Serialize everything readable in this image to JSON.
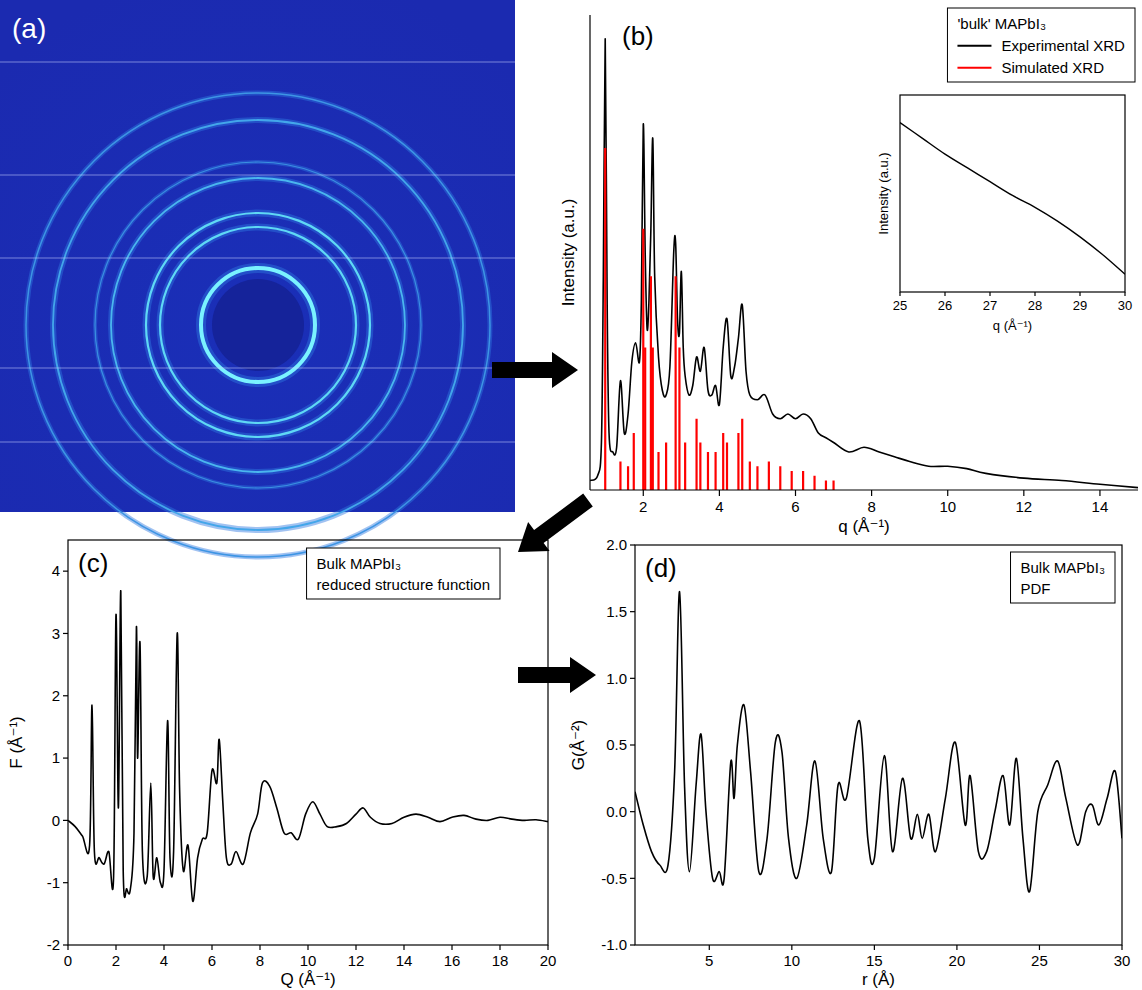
{
  "chart_data": [
    {
      "type": "image",
      "label": "(a)"
    },
    {
      "type": "line",
      "label": "(b)",
      "title": "'bulk' MAPbI₃",
      "x_label": "q (Å⁻¹)",
      "y_label": "Intensity (a.u.)",
      "xlim": [
        0.6,
        15
      ],
      "xticks": [
        2,
        4,
        6,
        8,
        10,
        12,
        14
      ],
      "ylim": [
        0,
        1
      ],
      "tick_labels": "x",
      "legend": "upper right",
      "series": [
        {
          "name": "Experimental XRD",
          "type": "line",
          "color": "#000000",
          "x": [
            0.6,
            0.8,
            0.9,
            0.95,
            1.0,
            1.05,
            1.1,
            1.2,
            1.3,
            1.4,
            1.5,
            1.6,
            1.7,
            1.8,
            1.9,
            1.95,
            2.0,
            2.05,
            2.1,
            2.15,
            2.2,
            2.25,
            2.3,
            2.4,
            2.5,
            2.6,
            2.7,
            2.8,
            2.85,
            2.9,
            2.95,
            3.0,
            3.05,
            3.1,
            3.2,
            3.3,
            3.4,
            3.5,
            3.6,
            3.7,
            3.8,
            3.9,
            4.0,
            4.1,
            4.2,
            4.3,
            4.4,
            4.5,
            4.6,
            4.7,
            4.8,
            5.0,
            5.2,
            5.4,
            5.6,
            5.8,
            6.0,
            6.2,
            6.4,
            6.6,
            6.8,
            7.0,
            7.4,
            7.8,
            8.2,
            8.6,
            9.0,
            9.5,
            10,
            10.5,
            11,
            12,
            13,
            14,
            15
          ],
          "values": [
            0.02,
            0.03,
            0.1,
            0.45,
            0.95,
            0.4,
            0.12,
            0.08,
            0.09,
            0.23,
            0.12,
            0.16,
            0.27,
            0.31,
            0.27,
            0.4,
            0.77,
            0.5,
            0.34,
            0.4,
            0.55,
            0.74,
            0.45,
            0.28,
            0.21,
            0.2,
            0.26,
            0.5,
            0.52,
            0.36,
            0.33,
            0.46,
            0.3,
            0.24,
            0.2,
            0.22,
            0.28,
            0.25,
            0.3,
            0.21,
            0.2,
            0.22,
            0.18,
            0.3,
            0.36,
            0.24,
            0.26,
            0.32,
            0.39,
            0.25,
            0.2,
            0.19,
            0.2,
            0.16,
            0.15,
            0.16,
            0.15,
            0.16,
            0.15,
            0.12,
            0.11,
            0.1,
            0.08,
            0.09,
            0.08,
            0.07,
            0.06,
            0.05,
            0.05,
            0.045,
            0.035,
            0.025,
            0.02,
            0.012,
            0.005
          ]
        },
        {
          "name": "Simulated XRD",
          "type": "stem",
          "color": "#ff0000",
          "x": [
            1.0,
            1.4,
            1.6,
            1.75,
            2.0,
            2.05,
            2.2,
            2.25,
            2.4,
            2.6,
            2.85,
            2.95,
            3.1,
            3.4,
            3.5,
            3.7,
            3.9,
            4.1,
            4.2,
            4.5,
            4.6,
            4.8,
            5.0,
            5.3,
            5.6,
            5.9,
            6.2,
            6.5,
            6.8,
            7.0
          ],
          "values": [
            0.72,
            0.06,
            0.05,
            0.12,
            0.55,
            0.3,
            0.45,
            0.3,
            0.08,
            0.1,
            0.45,
            0.3,
            0.1,
            0.15,
            0.1,
            0.08,
            0.08,
            0.12,
            0.1,
            0.12,
            0.15,
            0.06,
            0.05,
            0.06,
            0.05,
            0.04,
            0.04,
            0.03,
            0.02,
            0.02
          ]
        }
      ]
    },
    {
      "type": "line",
      "x_label": "q (Å⁻¹)",
      "y_label": "Intensity (a.u.)",
      "xlim": [
        25,
        30
      ],
      "xticks": [
        25,
        26,
        27,
        28,
        29,
        30
      ],
      "ylim": [
        0,
        1
      ],
      "tick_labels": "x",
      "color": "#000000",
      "x": [
        25,
        25.5,
        26,
        26.5,
        27,
        27.5,
        28,
        28.5,
        29,
        29.5,
        30
      ],
      "values": [
        0.86,
        0.78,
        0.7,
        0.63,
        0.56,
        0.49,
        0.43,
        0.36,
        0.28,
        0.19,
        0.09
      ]
    },
    {
      "type": "line",
      "label": "(c)",
      "title": "Bulk MAPbI₃",
      "subtitle": "reduced structure function",
      "x_label": "Q (Å⁻¹)",
      "y_label": "F (Å⁻¹)",
      "xlim": [
        0,
        20
      ],
      "xticks": [
        0,
        2,
        4,
        6,
        8,
        10,
        12,
        14,
        16,
        18,
        20
      ],
      "ylim": [
        -2,
        4.5
      ],
      "yticks": [
        -2,
        -1,
        0,
        1,
        2,
        3,
        4
      ],
      "color": "#000000",
      "x": [
        0,
        0.3,
        0.6,
        0.9,
        1.0,
        1.1,
        1.3,
        1.5,
        1.7,
        1.9,
        2.0,
        2.1,
        2.2,
        2.3,
        2.45,
        2.6,
        2.75,
        2.85,
        2.9,
        3.0,
        3.1,
        3.3,
        3.45,
        3.55,
        3.7,
        3.85,
        4.0,
        4.15,
        4.25,
        4.4,
        4.55,
        4.65,
        4.8,
        5.0,
        5.2,
        5.4,
        5.6,
        5.8,
        6.0,
        6.2,
        6.3,
        6.45,
        6.6,
        6.8,
        7.0,
        7.3,
        7.6,
        7.9,
        8.1,
        8.4,
        8.7,
        9.0,
        9.3,
        9.6,
        9.9,
        10.2,
        10.5,
        10.8,
        11.2,
        11.6,
        12.0,
        12.3,
        12.6,
        13.0,
        13.5,
        14.0,
        14.5,
        15.0,
        15.5,
        16.0,
        16.5,
        17.0,
        17.5,
        18.0,
        18.5,
        19.0,
        19.5,
        20.0
      ],
      "values": [
        0,
        -0.1,
        -0.25,
        -0.4,
        1.85,
        -0.5,
        -0.6,
        -0.7,
        -0.5,
        -0.9,
        3.3,
        0.2,
        3.68,
        -0.8,
        -1.1,
        -1.1,
        -0.2,
        3.1,
        1.0,
        2.85,
        -0.5,
        -0.9,
        0.6,
        -0.9,
        -0.6,
        -1.0,
        -0.8,
        1.6,
        -0.6,
        -0.5,
        3.0,
        0.5,
        -0.8,
        -0.4,
        -1.3,
        -0.6,
        -0.3,
        -0.2,
        0.8,
        0.6,
        1.3,
        0.3,
        -0.6,
        -0.7,
        -0.5,
        -0.7,
        -0.2,
        0.1,
        0.6,
        0.55,
        0.2,
        -0.2,
        -0.2,
        -0.3,
        0.1,
        0.3,
        0.1,
        -0.1,
        -0.1,
        -0.05,
        0.1,
        0.2,
        0.05,
        -0.05,
        -0.05,
        0.05,
        0.1,
        0.05,
        -0.02,
        0.05,
        0.08,
        0.02,
        0,
        0.05,
        0.02,
        0,
        0.01,
        -0.02
      ]
    },
    {
      "type": "line",
      "label": "(d)",
      "title": "Bulk MAPbI₃",
      "subtitle": "PDF",
      "x_label": "r (Å)",
      "y_label": "G(Å⁻²)",
      "xlim": [
        0.5,
        30
      ],
      "xticks": [
        5,
        10,
        15,
        20,
        25,
        30
      ],
      "ylim": [
        -1,
        2
      ],
      "yticks": [
        {
          "value": -1,
          "label": "-1.0"
        },
        -0.5,
        {
          "value": 0,
          "label": "0.0"
        },
        0.5,
        {
          "value": 1,
          "label": "1.0"
        },
        1.5,
        {
          "value": 2,
          "label": "2.0"
        }
      ],
      "color": "#000000",
      "x": [
        0.5,
        1.0,
        1.5,
        2.0,
        2.5,
        2.9,
        3.2,
        3.5,
        3.8,
        4.2,
        4.5,
        4.8,
        5.2,
        5.6,
        5.9,
        6.3,
        6.5,
        6.7,
        7.1,
        7.5,
        8.0,
        8.5,
        9.0,
        9.4,
        9.8,
        10.3,
        10.9,
        11.4,
        11.9,
        12.4,
        12.8,
        13.3,
        14.1,
        14.6,
        15.0,
        15.6,
        16.1,
        16.7,
        17.2,
        17.6,
        17.9,
        18.3,
        18.7,
        19.3,
        19.9,
        20.5,
        20.8,
        21.3,
        21.8,
        22.3,
        22.8,
        23.2,
        23.6,
        24.0,
        24.4,
        24.9,
        25.5,
        26.1,
        26.6,
        27.3,
        27.8,
        28.2,
        28.6,
        29.1,
        29.6,
        30.0
      ],
      "values": [
        0.15,
        -0.1,
        -0.3,
        -0.4,
        -0.4,
        0.3,
        1.65,
        0.2,
        -0.45,
        0.2,
        0.58,
        0.0,
        -0.5,
        -0.45,
        -0.5,
        0.37,
        0.1,
        0.5,
        0.8,
        0.3,
        -0.45,
        -0.2,
        0.52,
        0.45,
        -0.2,
        -0.5,
        -0.1,
        0.38,
        -0.2,
        -0.45,
        0.2,
        0.1,
        0.68,
        -0.2,
        -0.35,
        0.42,
        -0.3,
        0.25,
        -0.2,
        -0.02,
        -0.2,
        -0.02,
        -0.3,
        0.1,
        0.52,
        -0.1,
        0.27,
        -0.3,
        -0.3,
        0.0,
        0.27,
        -0.1,
        0.4,
        -0.2,
        -0.6,
        0.0,
        0.2,
        0.38,
        0.1,
        -0.25,
        0.0,
        0.05,
        -0.1,
        0.1,
        0.3,
        -0.2
      ]
    }
  ]
}
